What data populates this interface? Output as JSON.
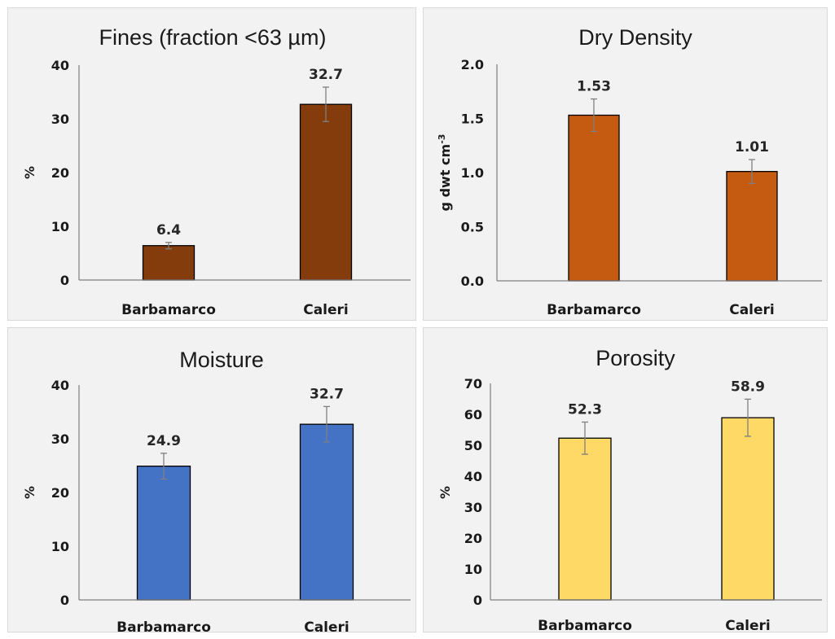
{
  "chart_data": [
    {
      "type": "bar",
      "title": "Fines (fraction <63 µm)",
      "ylabel": "%",
      "ylabel_sup": "",
      "categories": [
        "Barbamarco",
        "Caleri"
      ],
      "values": [
        6.4,
        32.7
      ],
      "value_labels": [
        "6.4",
        "32.7"
      ],
      "errors": [
        0.6,
        3.2
      ],
      "ylim": [
        0,
        40
      ],
      "yticks": [
        "0",
        "10",
        "20",
        "30",
        "40"
      ],
      "color": "#843c0c",
      "grid": false,
      "legend": "none"
    },
    {
      "type": "bar",
      "title": "Dry Density",
      "ylabel": "g dwt cm",
      "ylabel_sup": "-3",
      "categories": [
        "Barbamarco",
        "Caleri"
      ],
      "values": [
        1.53,
        1.01
      ],
      "value_labels": [
        "1.53",
        "1.01"
      ],
      "errors": [
        0.15,
        0.11
      ],
      "ylim": [
        0,
        2
      ],
      "yticks": [
        "0.0",
        "0.5",
        "1.0",
        "1.5",
        "2.0"
      ],
      "color": "#c55a11",
      "grid": false,
      "legend": "none"
    },
    {
      "type": "bar",
      "title": "Moisture",
      "ylabel": "%",
      "ylabel_sup": "",
      "categories": [
        "Barbamarco",
        "Caleri"
      ],
      "values": [
        24.9,
        32.7
      ],
      "value_labels": [
        "24.9",
        "32.7"
      ],
      "errors": [
        2.4,
        3.3
      ],
      "ylim": [
        0,
        40
      ],
      "yticks": [
        "0",
        "10",
        "20",
        "30",
        "40"
      ],
      "color": "#4472c4",
      "grid": false,
      "legend": "none"
    },
    {
      "type": "bar",
      "title": "Porosity",
      "ylabel": "%",
      "ylabel_sup": "",
      "categories": [
        "Barbamarco",
        "Caleri"
      ],
      "values": [
        52.3,
        58.9
      ],
      "value_labels": [
        "52.3",
        "58.9"
      ],
      "errors": [
        5.2,
        6.0
      ],
      "ylim": [
        0,
        70
      ],
      "yticks": [
        "0",
        "10",
        "20",
        "30",
        "40",
        "50",
        "60",
        "70"
      ],
      "color": "#ffd966",
      "grid": false,
      "legend": "none"
    }
  ]
}
